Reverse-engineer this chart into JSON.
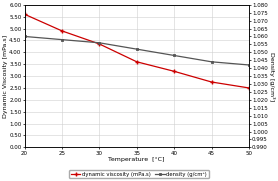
{
  "temperature": [
    20,
    25,
    30,
    35,
    40,
    45,
    50
  ],
  "dynamic_viscosity": [
    5.6,
    4.9,
    4.35,
    3.6,
    3.2,
    2.75,
    2.5
  ],
  "density": [
    1.06,
    1.058,
    1.056,
    1.052,
    1.048,
    1.044,
    1.042
  ],
  "viscosity_color": "#cc0000",
  "density_color": "#555555",
  "xlabel": "Temperature  [°C]",
  "ylabel_left": "Dynamic Viscosity [mPa.s]",
  "ylabel_right": "Density [g/cm³]",
  "ylim_left": [
    0.0,
    6.0
  ],
  "ylim_right": [
    0.99,
    1.08
  ],
  "xlim": [
    20,
    50
  ],
  "yticks_left": [
    0.0,
    0.5,
    1.0,
    1.5,
    2.0,
    2.5,
    3.0,
    3.5,
    4.0,
    4.5,
    5.0,
    5.5,
    6.0
  ],
  "yticks_right": [
    0.99,
    0.995,
    1.0,
    1.005,
    1.01,
    1.015,
    1.02,
    1.025,
    1.03,
    1.035,
    1.04,
    1.045,
    1.05,
    1.055,
    1.06,
    1.065,
    1.07,
    1.075,
    1.08
  ],
  "xticks": [
    20,
    25,
    30,
    35,
    40,
    45,
    50
  ],
  "legend_viscosity": "dynamic viscosity (mPa.s)",
  "legend_density": "density (g/cm³)",
  "bg_color": "#ffffff",
  "grid_color": "#d0d0d0",
  "title_fontsize": 5,
  "axis_label_fontsize": 4.5,
  "tick_fontsize": 4,
  "legend_fontsize": 3.8
}
